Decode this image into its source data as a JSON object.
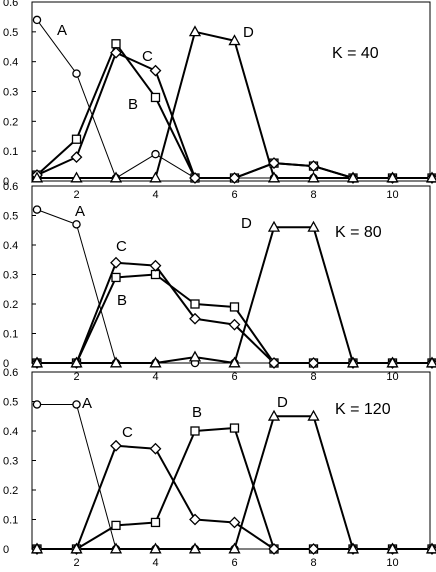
{
  "chart_data": [
    {
      "type": "line",
      "annotation": "K = 40",
      "xlim": [
        0,
        11
      ],
      "ylim": [
        0,
        0.6
      ],
      "x_ticks": [
        "2",
        "4",
        "6",
        "8",
        "10"
      ],
      "y_ticks": [
        "0",
        "0.1",
        "0.2",
        "0.3",
        "0.4",
        "0.5",
        "0.6"
      ],
      "x": [
        0,
        1,
        2,
        3,
        4,
        5,
        6,
        7,
        8,
        9,
        10,
        11
      ],
      "series": [
        {
          "name": "A",
          "marker": "circle",
          "stroke": 1,
          "values": [
            0.54,
            0.36,
            0.01,
            0.09,
            0.01,
            0.01,
            0.01,
            0.01,
            0.01,
            0.01,
            0.01,
            0.01
          ]
        },
        {
          "name": "B",
          "marker": "square",
          "stroke": 2,
          "values": [
            0.02,
            0.14,
            0.46,
            0.28,
            0.01,
            0.01,
            0.06,
            0.05,
            0.01,
            0.01,
            0.01,
            0.01
          ]
        },
        {
          "name": "C",
          "marker": "diamond",
          "stroke": 2,
          "values": [
            0.02,
            0.08,
            0.43,
            0.37,
            0.01,
            0.01,
            0.06,
            0.05,
            0.01,
            0.01,
            0.01,
            0.01
          ]
        },
        {
          "name": "D",
          "marker": "triangle",
          "stroke": 2,
          "values": [
            0.01,
            0.01,
            0.01,
            0.01,
            0.5,
            0.47,
            0.01,
            0.01,
            0.01,
            0.01,
            0.01,
            0.01
          ]
        }
      ]
    },
    {
      "type": "line",
      "annotation": "K = 80",
      "xlim": [
        0,
        11
      ],
      "ylim": [
        0,
        0.6
      ],
      "x_ticks": [
        "2",
        "4",
        "6",
        "8",
        "10"
      ],
      "y_ticks": [
        "0",
        "0.1",
        "0.2",
        "0.3",
        "0.4",
        "0.5",
        "0.6"
      ],
      "x": [
        0,
        1,
        2,
        3,
        4,
        5,
        6,
        7,
        8,
        9,
        10,
        11
      ],
      "series": [
        {
          "name": "A",
          "marker": "circle",
          "stroke": 1,
          "values": [
            0.52,
            0.47,
            0.0,
            0.0,
            0.0,
            0.0,
            0.0,
            0.0,
            0.0,
            0.0,
            0.0,
            0.0
          ]
        },
        {
          "name": "B",
          "marker": "square",
          "stroke": 2,
          "values": [
            0.0,
            0.0,
            0.29,
            0.3,
            0.2,
            0.19,
            0.0,
            0.0,
            0.0,
            0.0,
            0.0,
            0.0
          ]
        },
        {
          "name": "C",
          "marker": "diamond",
          "stroke": 2,
          "values": [
            0.0,
            0.0,
            0.34,
            0.33,
            0.15,
            0.13,
            0.0,
            0.0,
            0.0,
            0.0,
            0.0,
            0.0
          ]
        },
        {
          "name": "D",
          "marker": "triangle",
          "stroke": 2,
          "values": [
            0.0,
            0.0,
            0.0,
            0.0,
            0.02,
            0.0,
            0.46,
            0.46,
            0.0,
            0.0,
            0.0,
            0.0
          ]
        }
      ]
    },
    {
      "type": "line",
      "annotation": "K = 120",
      "xlim": [
        0,
        11
      ],
      "ylim": [
        0,
        0.6
      ],
      "x_ticks": [
        "2",
        "4",
        "6",
        "8",
        "10"
      ],
      "y_ticks": [
        "0",
        "0.1",
        "0.2",
        "0.3",
        "0.4",
        "0.5",
        "0.6"
      ],
      "x": [
        0,
        1,
        2,
        3,
        4,
        5,
        6,
        7,
        8,
        9,
        10,
        11
      ],
      "series": [
        {
          "name": "A",
          "marker": "circle",
          "stroke": 1,
          "values": [
            0.49,
            0.49,
            0.0,
            0.0,
            0.0,
            0.0,
            0.0,
            0.0,
            0.0,
            0.0,
            0.0,
            0.0
          ]
        },
        {
          "name": "B",
          "marker": "square",
          "stroke": 2,
          "values": [
            0.0,
            0.0,
            0.08,
            0.09,
            0.4,
            0.41,
            0.0,
            0.0,
            0.0,
            0.0,
            0.0,
            0.0
          ]
        },
        {
          "name": "C",
          "marker": "diamond",
          "stroke": 2,
          "values": [
            0.0,
            0.0,
            0.35,
            0.34,
            0.1,
            0.09,
            0.0,
            0.0,
            0.0,
            0.0,
            0.0,
            0.0
          ]
        },
        {
          "name": "D",
          "marker": "triangle",
          "stroke": 2,
          "values": [
            0.0,
            0.0,
            0.0,
            0.0,
            0.0,
            0.0,
            0.45,
            0.45,
            0.0,
            0.0,
            0.0,
            0.0
          ]
        }
      ]
    }
  ]
}
